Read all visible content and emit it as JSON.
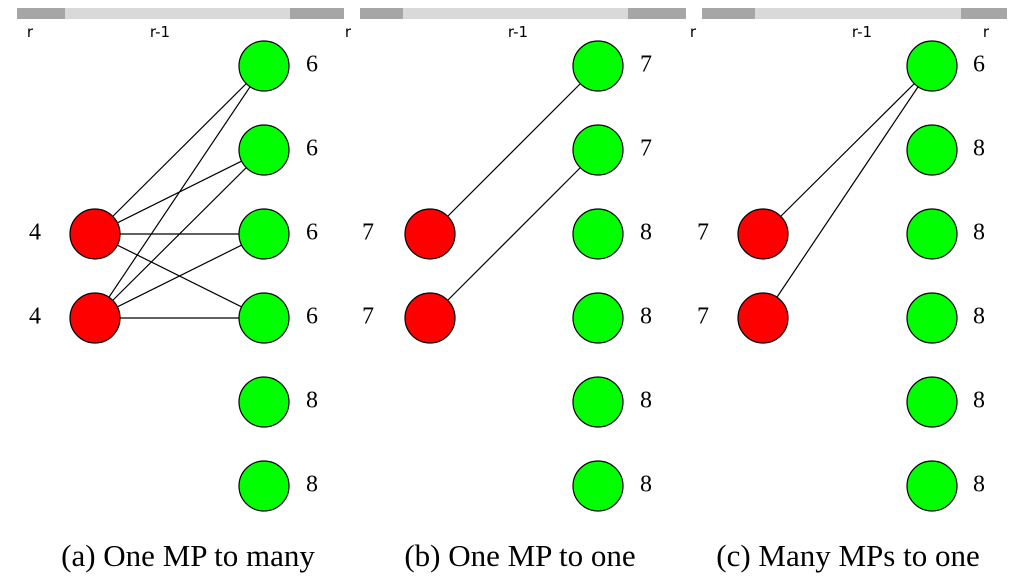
{
  "panels": [
    {
      "top_labels": [
        "r",
        "r-1",
        "r"
      ],
      "left_nodes": [
        4,
        4
      ],
      "right_nodes": [
        6,
        6,
        6,
        6,
        8,
        8
      ],
      "caption": "(a) One MP to many"
    },
    {
      "top_labels": [
        "r-1"
      ],
      "left_nodes": [
        7,
        7
      ],
      "right_nodes": [
        7,
        7,
        8,
        8,
        8,
        8
      ],
      "caption": "(b) One MP to one"
    },
    {
      "top_labels": [
        "r",
        "r-1",
        "r"
      ],
      "left_nodes": [
        7,
        7
      ],
      "right_nodes": [
        6,
        8,
        8,
        8,
        8,
        8
      ],
      "caption": "(c) Many MPs to one"
    }
  ]
}
